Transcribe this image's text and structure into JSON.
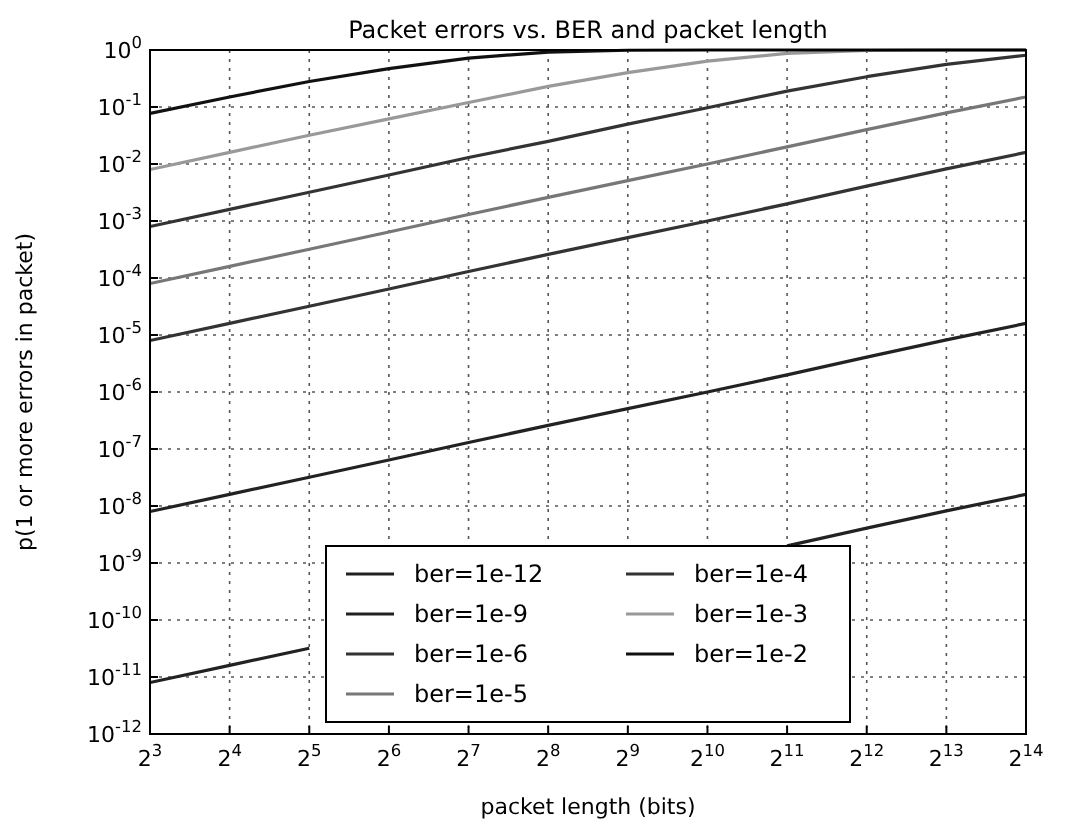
{
  "chart_data": {
    "type": "line",
    "title": "Packet errors vs. BER and packet length",
    "xlabel": "packet length (bits)",
    "ylabel": "p(1 or more errors in packet)",
    "x": [
      8,
      16,
      32,
      64,
      128,
      256,
      512,
      1024,
      2048,
      4096,
      8192,
      16384
    ],
    "log": "xy",
    "grid": true,
    "legend": "bottom",
    "line_style": "solid",
    "marker": "none",
    "xlim": [
      8,
      16384
    ],
    "ylim": [
      1e-12,
      1
    ],
    "xticks": [
      {
        "value": 8,
        "label": "2$^{3}$"
      },
      {
        "value": 16,
        "label": "2$^{4}$"
      },
      {
        "value": 32,
        "label": "2$^{5}$"
      },
      {
        "value": 64,
        "label": "2$^{6}$"
      },
      {
        "value": 128,
        "label": "2$^{7}$"
      },
      {
        "value": 256,
        "label": "2$^{8}$"
      },
      {
        "value": 512,
        "label": "2$^{9}$"
      },
      {
        "value": 1024,
        "label": "2$^{10}$"
      },
      {
        "value": 2048,
        "label": "2$^{11}$"
      },
      {
        "value": 4096,
        "label": "2$^{12}$"
      },
      {
        "value": 8192,
        "label": "2$^{13}$"
      },
      {
        "value": 16384,
        "label": "2$^{14}$"
      }
    ],
    "yticks": [
      {
        "value": 1e-12,
        "label": "10$^{-12}$"
      },
      {
        "value": 1e-11,
        "label": "10$^{-11}$"
      },
      {
        "value": 1e-10,
        "label": "10$^{-10}$"
      },
      {
        "value": 1e-09,
        "label": "10$^{-9}$"
      },
      {
        "value": 1e-08,
        "label": "10$^{-8}$"
      },
      {
        "value": 1e-07,
        "label": "10$^{-7}$"
      },
      {
        "value": 1e-06,
        "label": "10$^{-6}$"
      },
      {
        "value": 1e-05,
        "label": "10$^{-5}$"
      },
      {
        "value": 0.0001,
        "label": "10$^{-4}$"
      },
      {
        "value": 0.001,
        "label": "10$^{-3}$"
      },
      {
        "value": 0.01,
        "label": "10$^{-2}$"
      },
      {
        "value": 0.1,
        "label": "10$^{-1}$"
      },
      {
        "value": 1,
        "label": "10$^{0}$"
      }
    ],
    "series": [
      {
        "name": "ber=1e-12",
        "color": "#222222",
        "values": [
          8e-12,
          1.6e-11,
          3.2e-11,
          null,
          null,
          null,
          null,
          null,
          2e-09,
          4.1e-09,
          8.2e-09,
          1.6e-08
        ]
      },
      {
        "name": "ber=1e-9",
        "color": "#222222",
        "values": [
          8e-09,
          1.6e-08,
          3.2e-08,
          6.4e-08,
          1.3e-07,
          2.6e-07,
          5.1e-07,
          1e-06,
          2e-06,
          4.1e-06,
          8.2e-06,
          1.6e-05
        ]
      },
      {
        "name": "ber=1e-6",
        "color": "#333333",
        "values": [
          8e-06,
          1.6e-05,
          3.2e-05,
          6.4e-05,
          0.00013,
          0.00026,
          0.00051,
          0.001,
          0.002,
          0.0041,
          0.0082,
          0.016
        ]
      },
      {
        "name": "ber=1e-5",
        "color": "#777777",
        "values": [
          8e-05,
          0.00016,
          0.00032,
          0.00064,
          0.0013,
          0.0026,
          0.0051,
          0.01,
          0.02,
          0.04,
          0.079,
          0.15
        ]
      },
      {
        "name": "ber=1e-4",
        "color": "#333333",
        "values": [
          0.0008,
          0.0016,
          0.0032,
          0.0064,
          0.013,
          0.025,
          0.05,
          0.097,
          0.19,
          0.34,
          0.56,
          0.81
        ]
      },
      {
        "name": "ber=1e-3",
        "color": "#999999",
        "values": [
          0.008,
          0.016,
          0.032,
          0.062,
          0.12,
          0.23,
          0.4,
          0.64,
          0.87,
          0.98,
          1,
          1
        ]
      },
      {
        "name": "ber=1e-2",
        "color": "#111111",
        "values": [
          0.077,
          0.15,
          0.28,
          0.47,
          0.72,
          0.92,
          0.99,
          1,
          1,
          1,
          1,
          1
        ]
      }
    ]
  }
}
